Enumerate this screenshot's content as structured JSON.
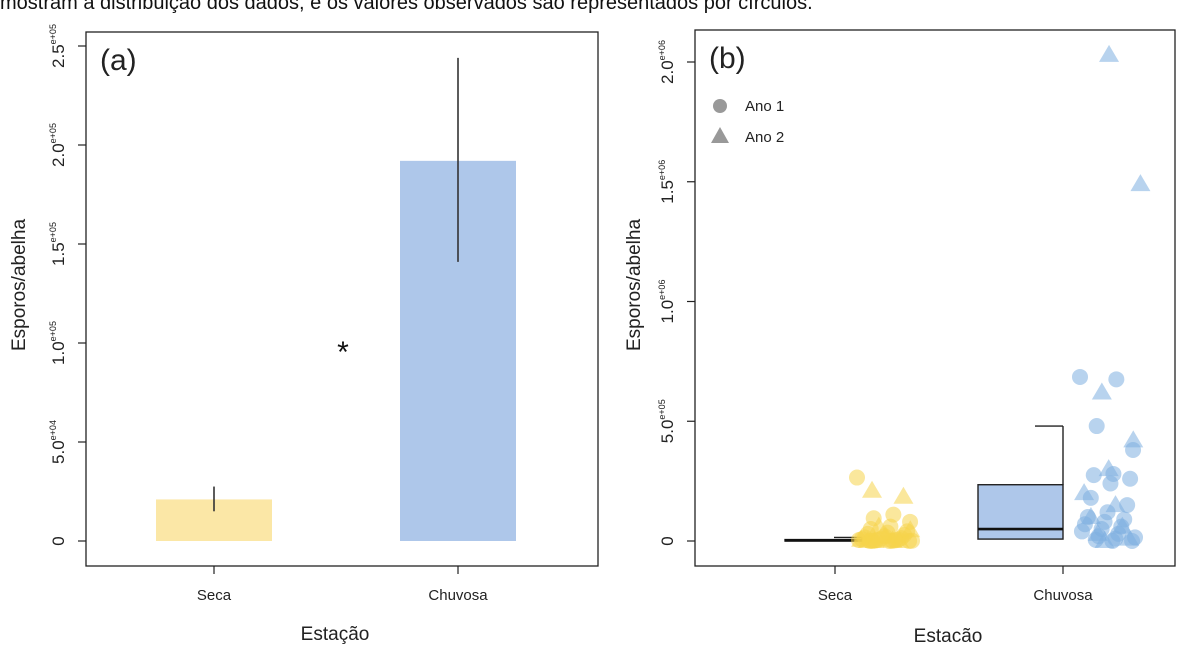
{
  "caption": "mostram a distribuição dos dados, e os valores observados são representados por círculos.",
  "chart_data": [
    {
      "type": "bar",
      "panel_label": "(a)",
      "xlabel": "Estação",
      "ylabel": "Esporos/abelha",
      "categories": [
        "Seca",
        "Chuvosa"
      ],
      "values": [
        21000,
        192000
      ],
      "error_bars": [
        [
          15000,
          27500
        ],
        [
          141000,
          244000
        ]
      ],
      "colors": [
        "#fbe7a6",
        "#aec7ea"
      ],
      "annotation": "*",
      "ylim": [
        0,
        250000
      ],
      "yticks": [
        {
          "value": 0,
          "label": "0",
          "exp": ""
        },
        {
          "value": 50000,
          "label": "5.0",
          "exp": "e+04"
        },
        {
          "value": 100000,
          "label": "1.0",
          "exp": "e+05"
        },
        {
          "value": 150000,
          "label": "1.5",
          "exp": "e+05"
        },
        {
          "value": 200000,
          "label": "2.0",
          "exp": "e+05"
        },
        {
          "value": 250000,
          "label": "2.5",
          "exp": "e+05"
        }
      ],
      "grid": false
    },
    {
      "type": "box-scatter",
      "panel_label": "(b)",
      "xlabel": "Estacão",
      "ylabel": "Esporos/abelha",
      "categories": [
        "Seca",
        "Chuvosa"
      ],
      "ylim": [
        0,
        2000000
      ],
      "yticks": [
        {
          "value": 0,
          "label": "0",
          "exp": ""
        },
        {
          "value": 500000,
          "label": "5.0",
          "exp": "e+05"
        },
        {
          "value": 1000000,
          "label": "1.0",
          "exp": "e+06"
        },
        {
          "value": 1500000,
          "label": "1.5",
          "exp": "e+06"
        },
        {
          "value": 2000000,
          "label": "2.0",
          "exp": "e+06"
        }
      ],
      "legend": {
        "placement": "top-left",
        "entries": [
          {
            "label": "Ano 1",
            "shape": "circle"
          },
          {
            "label": "Ano 2",
            "shape": "triangle"
          }
        ]
      },
      "boxes": [
        {
          "category": "Seca",
          "min": 0,
          "q1": 0,
          "median": 3000,
          "q3": 6000,
          "max": 15000
        },
        {
          "category": "Chuvosa",
          "min": 0,
          "q1": 8000,
          "median": 50000,
          "q3": 235000,
          "max": 480000
        }
      ],
      "points": {
        "Seca": {
          "color": "#f6d44a",
          "circles": [
            265000,
            110000,
            95000,
            80000,
            60000,
            50000,
            40000,
            35000,
            30000,
            25000,
            20000,
            15000,
            12000,
            10000,
            8000,
            6000,
            5000,
            4000,
            3000,
            2000,
            1000,
            500,
            0,
            0,
            0,
            0
          ],
          "triangles": [
            210000,
            185000,
            60000,
            45000,
            20000,
            5000,
            2000,
            0,
            0,
            0
          ]
        },
        "Chuvosa": {
          "color": "#7eaee0",
          "circles": [
            685000,
            675000,
            480000,
            380000,
            280000,
            275000,
            260000,
            240000,
            180000,
            150000,
            120000,
            100000,
            90000,
            80000,
            70000,
            60000,
            50000,
            40000,
            30000,
            20000,
            15000,
            10000,
            5000,
            0,
            0
          ],
          "triangles": [
            2030000,
            1490000,
            620000,
            420000,
            300000,
            200000,
            150000,
            100000,
            60000,
            30000,
            10000,
            0
          ]
        }
      },
      "grid": false
    }
  ]
}
